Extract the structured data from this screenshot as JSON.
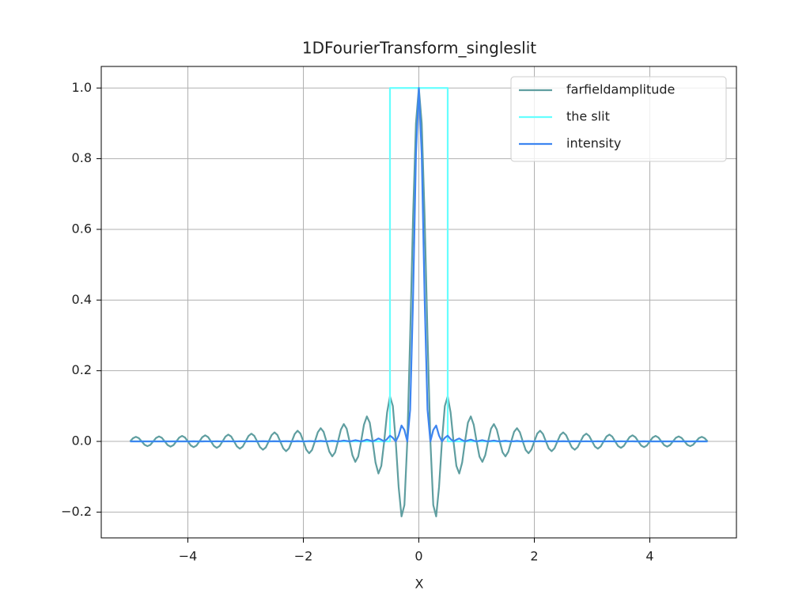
{
  "chart_data": {
    "type": "line",
    "title": "1DFourierTransform_singleslit",
    "xlabel": "X",
    "xlim": [
      -5.5,
      5.5
    ],
    "ylim": [
      -0.273,
      1.061
    ],
    "xticks": [
      {
        "value": -4,
        "label": "−4"
      },
      {
        "value": -2,
        "label": "−2"
      },
      0,
      2,
      4
    ],
    "yticks": [
      {
        "value": -0.2,
        "label": "−0.2"
      },
      {
        "value": 0,
        "label": "0.0"
      },
      0.2,
      0.4,
      0.6,
      0.8,
      {
        "value": 1,
        "label": "1.0"
      }
    ],
    "grid": true,
    "legend": "upper right",
    "x": [
      -5,
      -4.95,
      -4.9,
      -4.85,
      -4.8,
      -4.75,
      -4.7,
      -4.65,
      -4.6,
      -4.55,
      -4.5,
      -4.45,
      -4.4,
      -4.35,
      -4.3,
      -4.25,
      -4.2,
      -4.15,
      -4.1,
      -4.05,
      -4,
      -3.95,
      -3.9,
      -3.85,
      -3.8,
      -3.75,
      -3.7,
      -3.65,
      -3.6,
      -3.55,
      -3.5,
      -3.45,
      -3.4,
      -3.35,
      -3.3,
      -3.25,
      -3.2,
      -3.15,
      -3.1,
      -3.05,
      -3,
      -2.95,
      -2.9,
      -2.85,
      -2.8,
      -2.75,
      -2.7,
      -2.65,
      -2.6,
      -2.55,
      -2.5,
      -2.45,
      -2.4,
      -2.35,
      -2.3,
      -2.25,
      -2.2,
      -2.15,
      -2.1,
      -2.05,
      -2,
      -1.95,
      -1.9,
      -1.85,
      -1.8,
      -1.75,
      -1.7,
      -1.65,
      -1.6,
      -1.55,
      -1.5,
      -1.45,
      -1.4,
      -1.35,
      -1.3,
      -1.25,
      -1.2,
      -1.15,
      -1.1,
      -1.05,
      -1,
      -0.95,
      -0.9,
      -0.85,
      -0.8,
      -0.75,
      -0.7,
      -0.65,
      -0.6,
      -0.55,
      -0.5,
      -0.45,
      -0.4,
      -0.35,
      -0.3,
      -0.25,
      -0.2,
      -0.15,
      -0.1,
      -0.05,
      0,
      0.05,
      0.1,
      0.15,
      0.2,
      0.25,
      0.3,
      0.35,
      0.4,
      0.45,
      0.5,
      0.55,
      0.6,
      0.65,
      0.7,
      0.75,
      0.8,
      0.85,
      0.9,
      0.95,
      1,
      1.05,
      1.1,
      1.15,
      1.2,
      1.25,
      1.3,
      1.35,
      1.4,
      1.45,
      1.5,
      1.55,
      1.6,
      1.65,
      1.7,
      1.75,
      1.8,
      1.85,
      1.9,
      1.95,
      2,
      2.05,
      2.1,
      2.15,
      2.2,
      2.25,
      2.3,
      2.35,
      2.4,
      2.45,
      2.5,
      2.55,
      2.6,
      2.65,
      2.7,
      2.75,
      2.8,
      2.85,
      2.9,
      2.95,
      3,
      3.05,
      3.1,
      3.15,
      3.2,
      3.25,
      3.3,
      3.35,
      3.4,
      3.45,
      3.5,
      3.55,
      3.6,
      3.65,
      3.7,
      3.75,
      3.8,
      3.85,
      3.9,
      3.95,
      4,
      4.05,
      4.1,
      4.15,
      4.2,
      4.25,
      4.3,
      4.35,
      4.4,
      4.45,
      4.5,
      4.55,
      4.6,
      4.65,
      4.7,
      4.75,
      4.8,
      4.85,
      4.9,
      4.95,
      5
    ],
    "series": [
      {
        "name": "farfieldamplitude",
        "color": "#5f9ea0",
        "values": [
          0,
          0.0091,
          0.013,
          0.0093,
          0,
          -0.0095,
          -0.0135,
          -0.0097,
          0,
          0.0099,
          0.0141,
          0.0101,
          0,
          -0.0103,
          -0.0148,
          -0.0106,
          0,
          0.0108,
          0.0155,
          0.0111,
          0,
          -0.0114,
          -0.0163,
          -0.0117,
          0,
          0.012,
          0.0172,
          0.0123,
          0,
          -0.0127,
          -0.0182,
          -0.013,
          0,
          0.0134,
          0.0193,
          0.0139,
          0,
          -0.0143,
          -0.0205,
          -0.0148,
          0,
          0.0153,
          0.022,
          0.0158,
          0,
          -0.0164,
          -0.0236,
          -0.017,
          0,
          0.0177,
          0.0255,
          0.0184,
          0,
          -0.0192,
          -0.0277,
          -0.02,
          0,
          0.0209,
          0.0303,
          0.022,
          0,
          -0.0231,
          -0.0335,
          -0.0243,
          0,
          0.0257,
          0.0374,
          0.0273,
          0,
          -0.029,
          -0.0424,
          -0.031,
          0,
          0.0333,
          0.049,
          0.036,
          0,
          -0.0391,
          -0.0579,
          -0.0429,
          0,
          0.0474,
          0.0707,
          0.053,
          0,
          -0.06,
          -0.0909,
          -0.0693,
          0,
          0.0818,
          0.1273,
          0.1,
          0,
          -0.1286,
          -0.2122,
          -0.1801,
          0,
          0.3001,
          0.6366,
          0.9003,
          1,
          0.9003,
          0.6366,
          0.3001,
          0,
          -0.1801,
          -0.2122,
          -0.1286,
          0,
          0.1,
          0.1273,
          0.0818,
          0,
          -0.0693,
          -0.0909,
          -0.06,
          0,
          0.053,
          0.0707,
          0.0474,
          0,
          -0.0429,
          -0.0579,
          -0.0391,
          0,
          0.036,
          0.049,
          0.0333,
          0,
          -0.031,
          -0.0424,
          -0.029,
          0,
          0.0273,
          0.0374,
          0.0257,
          0,
          -0.0243,
          -0.0335,
          -0.0231,
          0,
          0.022,
          0.0303,
          0.0209,
          0,
          -0.02,
          -0.0277,
          -0.0192,
          0,
          0.0184,
          0.0255,
          0.0177,
          0,
          -0.017,
          -0.0236,
          -0.0164,
          0,
          0.0158,
          0.022,
          0.0153,
          0,
          -0.0148,
          -0.0205,
          -0.0143,
          0,
          0.0139,
          0.0193,
          0.0134,
          0,
          -0.013,
          -0.0182,
          -0.0127,
          0,
          0.0123,
          0.0172,
          0.012,
          0,
          -0.0117,
          -0.0163,
          -0.0114,
          0,
          0.0111,
          0.0155,
          0.0108,
          0,
          -0.0106,
          -0.0148,
          -0.0103,
          0,
          0.0101,
          0.0141,
          0.0099,
          0,
          -0.0097,
          -0.0135,
          -0.0095,
          0,
          0.0093,
          0.013,
          0.0091,
          0
        ]
      },
      {
        "name": "the slit",
        "color": "#66ffff",
        "x": [
          -5,
          -0.5,
          -0.5,
          0.5,
          0.5,
          5
        ],
        "values": [
          0,
          0,
          1,
          1,
          0,
          0
        ]
      },
      {
        "name": "intensity",
        "color": "#3d85f0",
        "values": [
          0,
          0.0001,
          0.0002,
          0.0001,
          0,
          0.0001,
          0.0002,
          0.0001,
          0,
          0.0001,
          0.0002,
          0.0001,
          0,
          0.0001,
          0.0002,
          0.0001,
          0,
          0.0001,
          0.0002,
          0.0001,
          0,
          0.0001,
          0.0003,
          0.0001,
          0,
          0.0001,
          0.0003,
          0.0002,
          0,
          0.0002,
          0.0003,
          0.0002,
          0,
          0.0002,
          0.0004,
          0.0002,
          0,
          0.0002,
          0.0004,
          0.0002,
          0,
          0.0002,
          0.0005,
          0.0002,
          0,
          0.0003,
          0.0006,
          0.0003,
          0,
          0.0003,
          0.0007,
          0.0003,
          0,
          0.0004,
          0.0008,
          0.0004,
          0,
          0.0004,
          0.0009,
          0.0005,
          0,
          0.0005,
          0.0011,
          0.0006,
          0,
          0.0007,
          0.0014,
          0.0007,
          0,
          0.0008,
          0.0018,
          0.001,
          0,
          0.0011,
          0.0024,
          0.0013,
          0,
          0.0015,
          0.0034,
          0.0018,
          0,
          0.0022,
          0.005,
          0.0028,
          0,
          0.0036,
          0.0083,
          0.0048,
          0,
          0.0067,
          0.0162,
          0.01,
          0,
          0.0165,
          0.045,
          0.0324,
          0,
          0.0901,
          0.4053,
          0.8105,
          1,
          0.8105,
          0.4053,
          0.0901,
          0,
          0.0324,
          0.045,
          0.0165,
          0,
          0.01,
          0.0162,
          0.0067,
          0,
          0.0048,
          0.0083,
          0.0036,
          0,
          0.0028,
          0.005,
          0.0022,
          0,
          0.0018,
          0.0034,
          0.0015,
          0,
          0.0013,
          0.0024,
          0.0011,
          0,
          0.001,
          0.0018,
          0.0008,
          0,
          0.0007,
          0.0014,
          0.0007,
          0,
          0.0006,
          0.0011,
          0.0005,
          0,
          0.0005,
          0.0009,
          0.0004,
          0,
          0.0004,
          0.0008,
          0.0004,
          0,
          0.0003,
          0.0007,
          0.0003,
          0,
          0.0003,
          0.0006,
          0.0003,
          0,
          0.0002,
          0.0005,
          0.0002,
          0,
          0.0002,
          0.0004,
          0.0002,
          0,
          0.0002,
          0.0004,
          0.0002,
          0,
          0.0002,
          0.0003,
          0.0002,
          0,
          0.0002,
          0.0003,
          0.0001,
          0,
          0.0001,
          0.0003,
          0.0001,
          0,
          0.0001,
          0.0002,
          0.0001,
          0,
          0.0001,
          0.0002,
          0.0001,
          0,
          0.0001,
          0.0002,
          0.0001,
          0,
          0.0001,
          0.0002,
          0.0001,
          0,
          0.0001,
          0.0002,
          0.0001,
          0
        ]
      }
    ]
  }
}
